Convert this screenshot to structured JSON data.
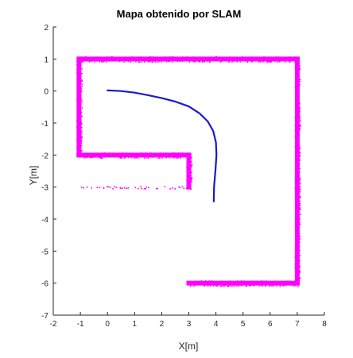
{
  "chart_data": {
    "type": "scatter",
    "title": "Mapa obtenido por SLAM",
    "xlabel": "X[m]",
    "ylabel": "Y[m]",
    "xlim": [
      -2,
      8
    ],
    "ylim": [
      -7,
      2
    ],
    "xticks": [
      -2,
      -1,
      0,
      1,
      2,
      3,
      4,
      5,
      6,
      7,
      8
    ],
    "yticks": [
      -7,
      -6,
      -5,
      -4,
      -3,
      -2,
      -1,
      0,
      1,
      2
    ],
    "grid": false,
    "series": [
      {
        "kind": "walls",
        "color": "#ff00ff",
        "segments": [
          {
            "x": [
              -1.05,
              7.0
            ],
            "y": [
              1.0,
              1.0
            ]
          },
          {
            "x": [
              7.0,
              7.0
            ],
            "y": [
              1.0,
              -6.0
            ]
          },
          {
            "x": [
              7.0,
              3.0
            ],
            "y": [
              -6.0,
              -6.0
            ]
          },
          {
            "x": [
              -1.05,
              -1.05
            ],
            "y": [
              1.0,
              -2.0
            ]
          },
          {
            "x": [
              -1.05,
              3.0
            ],
            "y": [
              -2.0,
              -2.0
            ]
          },
          {
            "x": [
              3.0,
              3.0
            ],
            "y": [
              -2.0,
              -3.0
            ]
          }
        ],
        "scatter": {
          "x": [
            -1.0,
            3.0
          ],
          "y": [
            -3.0,
            -3.0
          ]
        }
      },
      {
        "kind": "trajectory",
        "color": "#1a1acc",
        "x": [
          0.0,
          0.5,
          1.0,
          1.5,
          2.0,
          2.5,
          3.0,
          3.4,
          3.7,
          3.9,
          4.0,
          4.02,
          3.98,
          3.93,
          3.92
        ],
        "y": [
          0.02,
          0.0,
          -0.05,
          -0.13,
          -0.22,
          -0.33,
          -0.48,
          -0.7,
          -0.95,
          -1.25,
          -1.6,
          -2.0,
          -2.5,
          -3.0,
          -3.45
        ]
      }
    ]
  }
}
